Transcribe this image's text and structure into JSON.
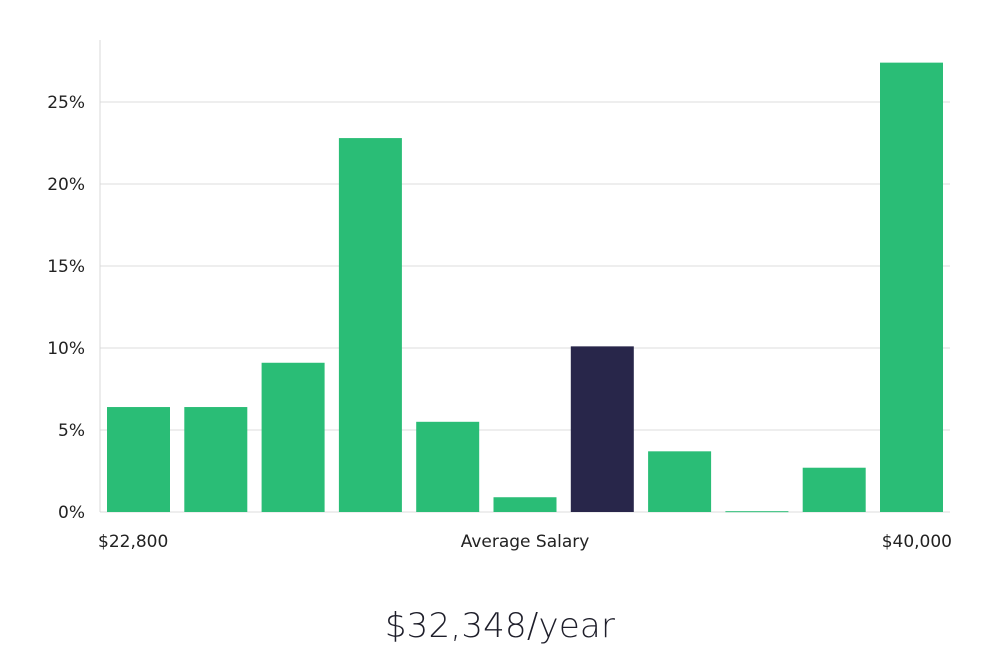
{
  "chart_data": {
    "type": "bar",
    "values": [
      6.4,
      6.4,
      9.1,
      22.8,
      5.5,
      0.9,
      10.1,
      3.7,
      0.05,
      2.7,
      27.4
    ],
    "highlight_index": 6,
    "ylim": [
      0,
      27.5
    ],
    "yticks": [
      0,
      5,
      10,
      15,
      20,
      25
    ],
    "ytick_labels": [
      "0%",
      "5%",
      "10%",
      "15%",
      "20%",
      "25%"
    ],
    "x_start_label": "$22,800",
    "x_center_label": "Average Salary",
    "x_end_label": "$40,000",
    "grid": true,
    "colors": {
      "bar": "#2abd76",
      "highlight": "#28264a",
      "grid": "#dcdcdc"
    }
  },
  "headline": "$32,348/year"
}
